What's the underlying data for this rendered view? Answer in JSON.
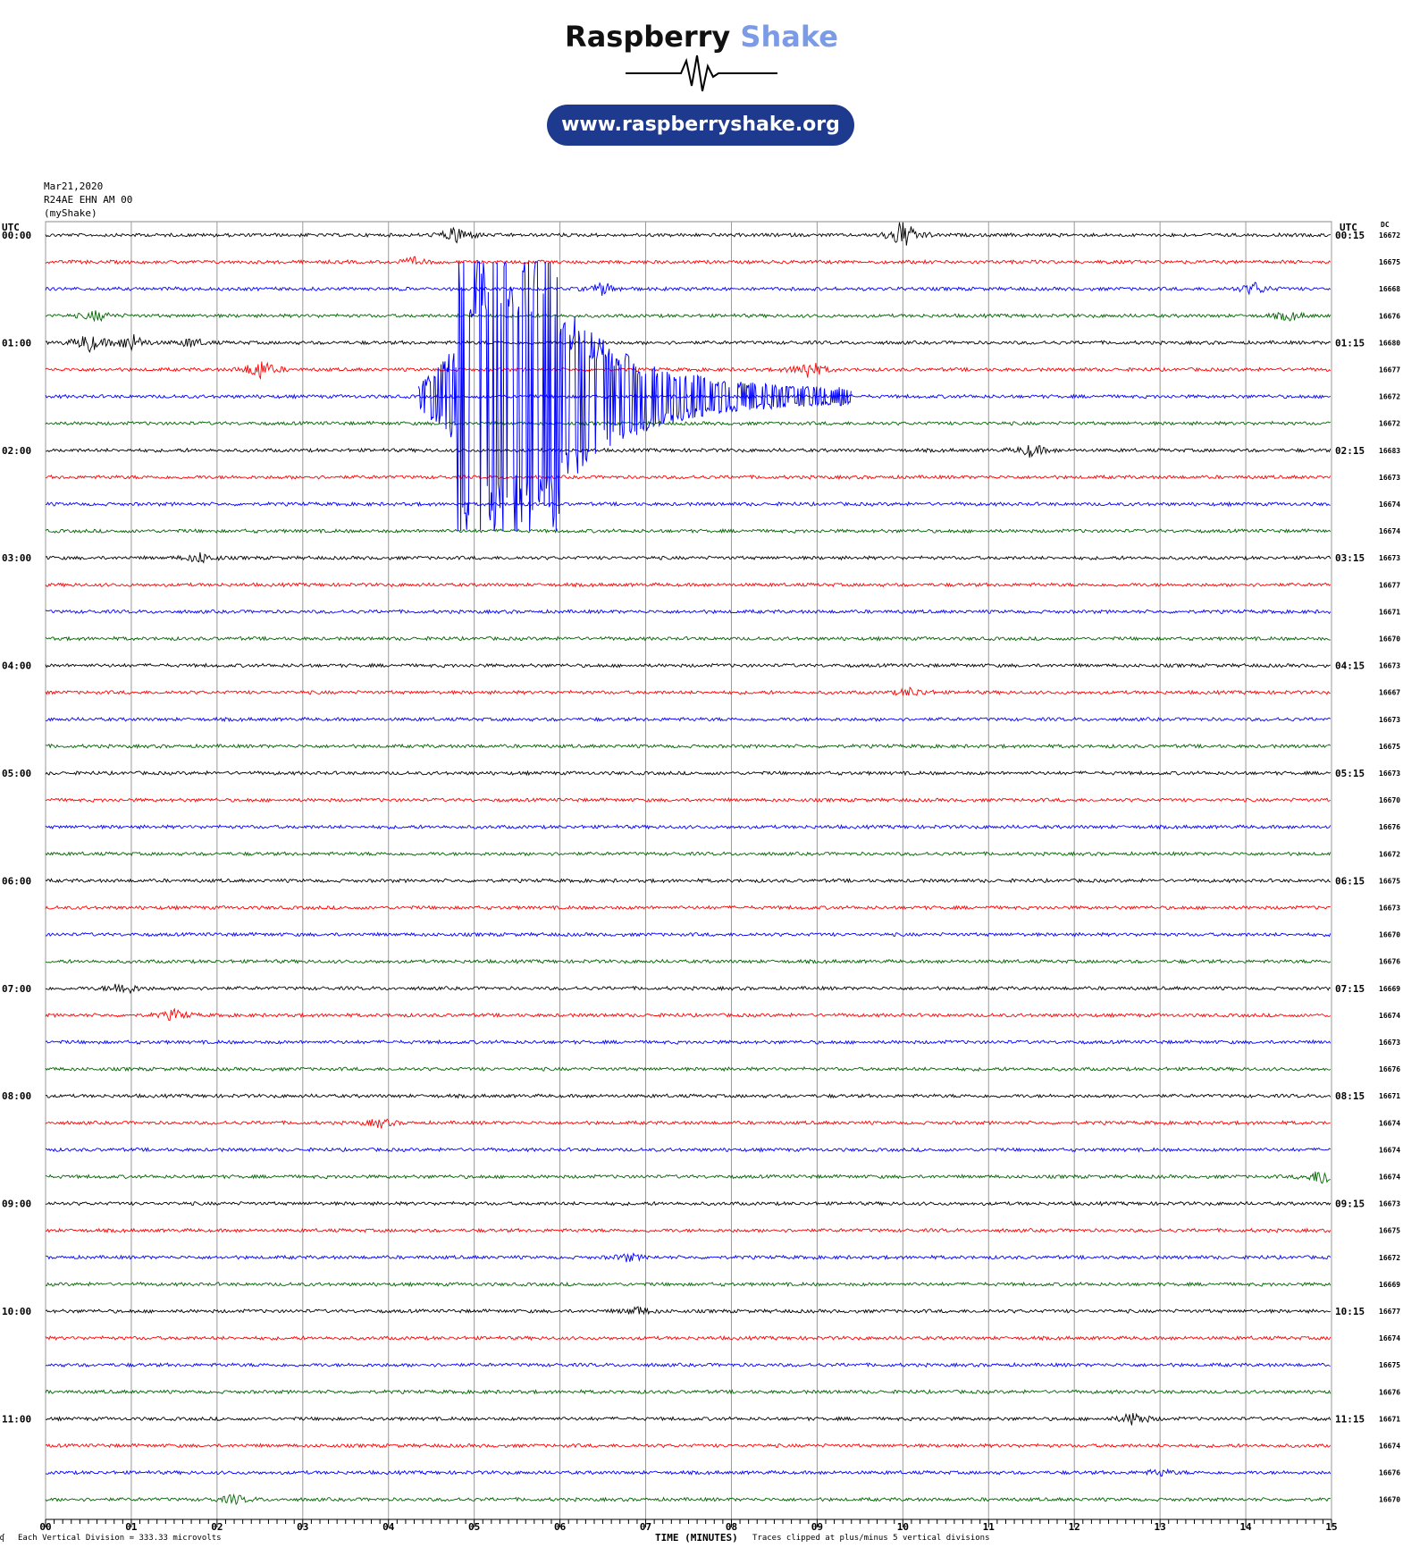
{
  "header": {
    "brand_first": "Raspberry",
    "brand_second": "Shake",
    "url": "www.raspberryshake.org",
    "logo_icon": "seismogram-wave-icon"
  },
  "station": {
    "date": "Mar21,2020",
    "channel": "R24AE EHN AM 00",
    "source": "(myShake)"
  },
  "chart_data": {
    "type": "line",
    "title": "",
    "left_label": "UTC",
    "right_label": "UTC",
    "dc_label": "DC",
    "xlabel": "TIME (MINUTES)",
    "x_ticks": [
      "00",
      "01",
      "02",
      "03",
      "04",
      "05",
      "06",
      "07",
      "08",
      "09",
      "10",
      "11",
      "12",
      "13",
      "14",
      "15"
    ],
    "xlim": [
      0,
      15
    ],
    "grid": true,
    "rows_per_hour": 4,
    "row_colors": [
      "#000000",
      "#ff0000",
      "#0000ff",
      "#006400"
    ],
    "left_hour_labels": [
      "00:00",
      "01:00",
      "02:00",
      "03:00",
      "04:00",
      "05:00",
      "06:00",
      "07:00",
      "08:00",
      "09:00",
      "10:00",
      "11:00"
    ],
    "right_hour_labels": [
      "00:15",
      "01:15",
      "02:15",
      "03:15",
      "04:15",
      "05:15",
      "06:15",
      "07:15",
      "08:15",
      "09:15",
      "10:15",
      "11:15"
    ],
    "dc_values": [
      "16672",
      "16675",
      "16668",
      "16676",
      "16680",
      "16677",
      "16672",
      "16672",
      "16683",
      "16673",
      "16674",
      "16674",
      "16673",
      "16677",
      "16671",
      "16670",
      "16673",
      "16667",
      "16673",
      "16675",
      "16673",
      "16670",
      "16676",
      "16672",
      "16675",
      "16673",
      "16670",
      "16676",
      "16669",
      "16674",
      "16673",
      "16676",
      "16671",
      "16674",
      "16674",
      "16674",
      "16673",
      "16675",
      "16672",
      "16669",
      "16677",
      "16674",
      "16675",
      "16676",
      "16671",
      "16674",
      "16676",
      "16670"
    ],
    "events": [
      {
        "row": 0,
        "minute": 4.8,
        "amplitude": 1.2
      },
      {
        "row": 0,
        "minute": 10.0,
        "amplitude": 2.0
      },
      {
        "row": 1,
        "minute": 4.3,
        "amplitude": 0.5
      },
      {
        "row": 2,
        "minute": 6.5,
        "amplitude": 0.8
      },
      {
        "row": 2,
        "minute": 14.1,
        "amplitude": 0.8
      },
      {
        "row": 3,
        "minute": 0.6,
        "amplitude": 0.7
      },
      {
        "row": 3,
        "minute": 14.5,
        "amplitude": 0.6
      },
      {
        "row": 4,
        "minute": 0.5,
        "amplitude": 1.3
      },
      {
        "row": 4,
        "minute": 1.0,
        "amplitude": 1.2
      },
      {
        "row": 4,
        "minute": 1.7,
        "amplitude": 0.6
      },
      {
        "row": 5,
        "minute": 2.5,
        "amplitude": 1.4
      },
      {
        "row": 5,
        "minute": 8.9,
        "amplitude": 1.3
      },
      {
        "row": 8,
        "minute": 11.5,
        "amplitude": 0.9
      },
      {
        "row": 12,
        "minute": 1.8,
        "amplitude": 0.7
      },
      {
        "row": 17,
        "minute": 10.1,
        "amplitude": 0.6
      },
      {
        "row": 28,
        "minute": 0.9,
        "amplitude": 0.9
      },
      {
        "row": 29,
        "minute": 1.5,
        "amplitude": 0.7
      },
      {
        "row": 33,
        "minute": 3.9,
        "amplitude": 0.6
      },
      {
        "row": 35,
        "minute": 14.9,
        "amplitude": 1.2
      },
      {
        "row": 38,
        "minute": 6.8,
        "amplitude": 0.5
      },
      {
        "row": 40,
        "minute": 6.9,
        "amplitude": 0.6
      },
      {
        "row": 44,
        "minute": 12.7,
        "amplitude": 0.9
      },
      {
        "row": 46,
        "minute": 13.0,
        "amplitude": 0.4
      },
      {
        "row": 47,
        "minute": 2.2,
        "amplitude": 0.6
      }
    ],
    "earthquake": {
      "row": 6,
      "onset_minute": 4.35,
      "peak_start": 4.8,
      "peak_end": 6.0,
      "coda_end": 9.4,
      "clip_divisions": 5
    },
    "footer_left": "Each Vertical Division =  333.33 microvolts",
    "footer_right": "Traces clipped at plus/minus 5 vertical divisions"
  }
}
